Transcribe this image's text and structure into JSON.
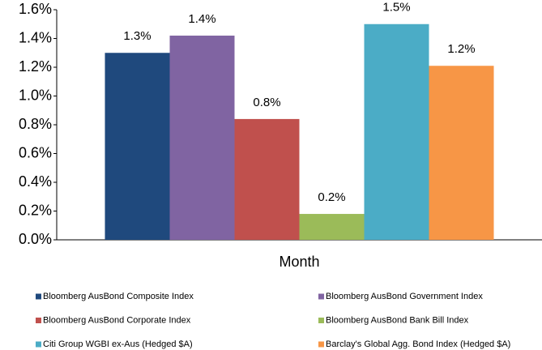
{
  "chart_data": {
    "type": "bar",
    "categories": [
      "Month"
    ],
    "series": [
      {
        "name": "Bloomberg AusBond Composite Index",
        "color": "#1f497d",
        "values": [
          1.3
        ],
        "value_labels": [
          "1.3%"
        ]
      },
      {
        "name": "Bloomberg AusBond Government Index",
        "color": "#8064a2",
        "values": [
          1.42
        ],
        "value_labels": [
          "1.4%"
        ]
      },
      {
        "name": "Bloomberg AusBond Corporate Index",
        "color": "#c0504d",
        "values": [
          0.84
        ],
        "value_labels": [
          "0.8%"
        ]
      },
      {
        "name": "Bloomberg AusBond Bank Bill Index",
        "color": "#9bbb59",
        "values": [
          0.18
        ],
        "value_labels": [
          "0.2%"
        ]
      },
      {
        "name": "Citi Group WGBI ex-Aus (Hedged $A)",
        "color": "#4bacc6",
        "values": [
          1.5
        ],
        "value_labels": [
          "1.5%"
        ]
      },
      {
        "name": "Barclay's Global Agg. Bond Index (Hedged $A)",
        "color": "#f79646",
        "values": [
          1.21
        ],
        "value_labels": [
          "1.2%"
        ]
      }
    ],
    "ylim": [
      0,
      1.6
    ],
    "yticks": [
      {
        "value": 0,
        "label": "0.0%"
      },
      {
        "value": 0.2,
        "label": "0.2%"
      },
      {
        "value": 0.4,
        "label": "0.4%"
      },
      {
        "value": 0.6,
        "label": "0.6%"
      },
      {
        "value": 0.8,
        "label": "0.8%"
      },
      {
        "value": 1.0,
        "label": "1.0%"
      },
      {
        "value": 1.2,
        "label": "1.2%"
      },
      {
        "value": 1.4,
        "label": "1.4%"
      },
      {
        "value": 1.6,
        "label": "1.6%"
      }
    ],
    "grid": false,
    "legend": "bottom"
  }
}
